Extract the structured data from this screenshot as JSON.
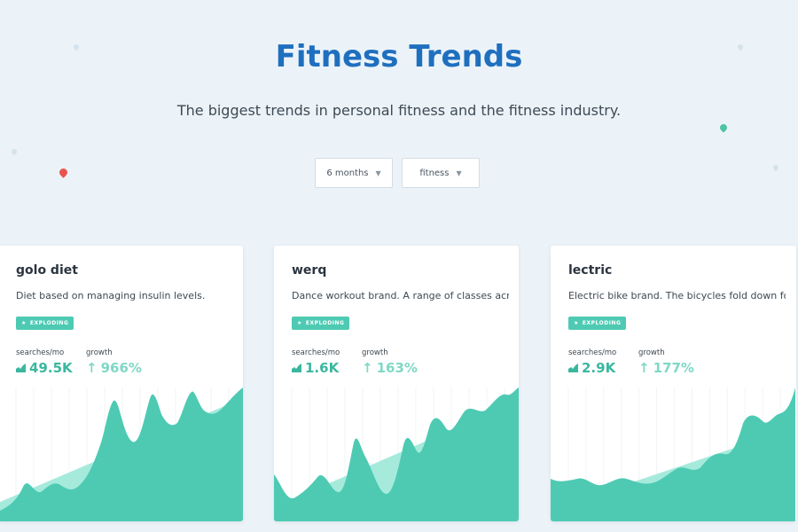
{
  "header": {
    "title": "Fitness Trends",
    "subtitle": "The biggest trends in personal fitness and the fitness industry."
  },
  "filters": {
    "period_label": "6 months",
    "category_label": "fitness"
  },
  "colors": {
    "title_blue": "#1f6fbf",
    "accent_teal": "#4ecab3",
    "pin_red": "#e9544f",
    "pin_teal": "#4fc2a8"
  },
  "cards": [
    {
      "title": "golo diet",
      "description": "Diet based on managing insulin levels.",
      "badge": "EXPLODING",
      "searches_label": "searches/mo",
      "searches_value": "49.5K",
      "growth_label": "growth",
      "growth_value": "966%"
    },
    {
      "title": "werq",
      "description": "Dance workout brand. A range of classes acros...",
      "badge": "EXPLODING",
      "searches_label": "searches/mo",
      "searches_value": "1.6K",
      "growth_label": "growth",
      "growth_value": "163%"
    },
    {
      "title": "lectric",
      "description": "Electric bike brand. The bicycles fold down for ...",
      "badge": "EXPLODING",
      "searches_label": "searches/mo",
      "searches_value": "2.9K",
      "growth_label": "growth",
      "growth_value": "177%"
    }
  ]
}
